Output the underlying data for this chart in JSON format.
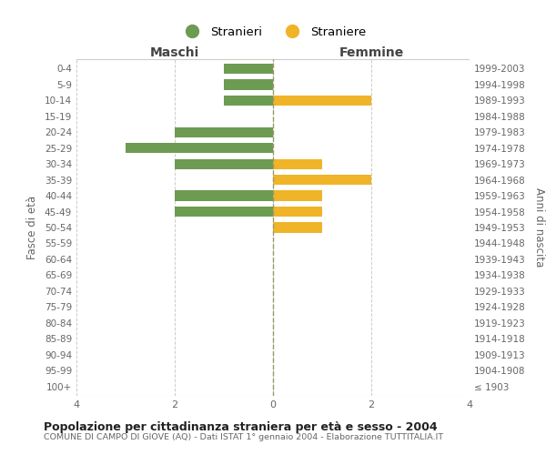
{
  "age_groups": [
    "100+",
    "95-99",
    "90-94",
    "85-89",
    "80-84",
    "75-79",
    "70-74",
    "65-69",
    "60-64",
    "55-59",
    "50-54",
    "45-49",
    "40-44",
    "35-39",
    "30-34",
    "25-29",
    "20-24",
    "15-19",
    "10-14",
    "5-9",
    "0-4"
  ],
  "birth_years": [
    "≤ 1903",
    "1904-1908",
    "1909-1913",
    "1914-1918",
    "1919-1923",
    "1924-1928",
    "1929-1933",
    "1934-1938",
    "1939-1943",
    "1944-1948",
    "1949-1953",
    "1954-1958",
    "1959-1963",
    "1964-1968",
    "1969-1973",
    "1974-1978",
    "1979-1983",
    "1984-1988",
    "1989-1993",
    "1994-1998",
    "1999-2003"
  ],
  "maschi": [
    0,
    0,
    0,
    0,
    0,
    0,
    0,
    0,
    0,
    0,
    0,
    2,
    2,
    0,
    2,
    3,
    2,
    0,
    1,
    1,
    1
  ],
  "femmine": [
    0,
    0,
    0,
    0,
    0,
    0,
    0,
    0,
    0,
    0,
    1,
    1,
    1,
    2,
    1,
    0,
    0,
    0,
    2,
    0,
    0
  ],
  "color_maschi": "#6d9b52",
  "color_femmine": "#f0b429",
  "title": "Popolazione per cittadinanza straniera per età e sesso - 2004",
  "subtitle": "COMUNE DI CAMPO DI GIOVE (AQ) - Dati ISTAT 1° gennaio 2004 - Elaborazione TUTTITALIA.IT",
  "xlabel_left": "Maschi",
  "xlabel_right": "Femmine",
  "ylabel_left": "Fasce di età",
  "ylabel_right": "Anni di nascita",
  "legend_maschi": "Stranieri",
  "legend_femmine": "Straniere",
  "xlim": 4,
  "background_color": "#ffffff",
  "grid_color": "#cccccc"
}
